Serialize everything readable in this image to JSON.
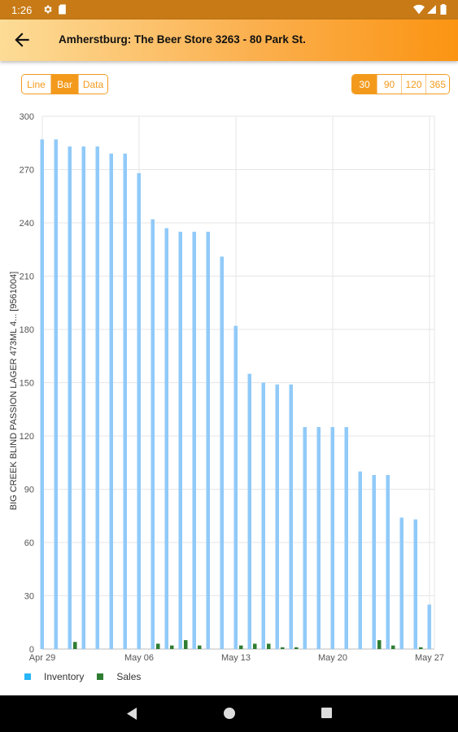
{
  "status_bar": {
    "time": "1:26",
    "icons": [
      "gear-icon",
      "sd-card-icon",
      "wifi-icon",
      "signal-icon",
      "battery-icon"
    ]
  },
  "app_bar": {
    "title": "Amherstburg: The Beer Store 3263 - 80 Park St.",
    "back_icon": "arrow-back-icon"
  },
  "view_toggle": {
    "options": [
      "Line",
      "Bar",
      "Data"
    ],
    "selected": "Bar"
  },
  "range_toggle": {
    "options": [
      "30",
      "90",
      "120",
      "365"
    ],
    "selected": "30"
  },
  "colors": {
    "accent": "#f39a1c",
    "inventory": "#90caf9",
    "sales": "#2e7d32",
    "legend_inventory": "#29b6f6"
  },
  "chart_data": {
    "type": "bar",
    "ylabel": "BIG CREEK BLIND PASSION LAGER 473ML 4... [9561004]",
    "ylim": [
      0,
      300
    ],
    "yticks": [
      0,
      30,
      60,
      90,
      120,
      150,
      180,
      210,
      240,
      270,
      300
    ],
    "x_start": "Apr 29",
    "x": [
      "Apr 29",
      "Apr 30",
      "May 01",
      "May 02",
      "May 03",
      "May 04",
      "May 05",
      "May 06",
      "May 07",
      "May 08",
      "May 09",
      "May 10",
      "May 11",
      "May 12",
      "May 13",
      "May 14",
      "May 15",
      "May 16",
      "May 17",
      "May 18",
      "May 19",
      "May 20",
      "May 21",
      "May 22",
      "May 23",
      "May 24",
      "May 25",
      "May 26",
      "May 27"
    ],
    "xtick_labels": [
      "Apr 29",
      "May 06",
      "May 13",
      "May 20",
      "May 27"
    ],
    "series": [
      {
        "name": "Inventory",
        "values": [
          287,
          287,
          283,
          283,
          283,
          279,
          279,
          268,
          242,
          237,
          235,
          235,
          235,
          221,
          182,
          155,
          150,
          149,
          149,
          125,
          125,
          125,
          125,
          100,
          98,
          98,
          74,
          73,
          25
        ]
      },
      {
        "name": "Sales",
        "values": [
          0,
          0,
          4,
          0,
          0,
          0,
          0,
          0,
          3,
          2,
          5,
          2,
          0,
          0,
          2,
          3,
          3,
          1,
          1,
          0,
          0,
          0,
          0,
          0,
          5,
          2,
          0,
          1,
          0
        ]
      }
    ],
    "grid": true,
    "legend_position": "bottom-left"
  },
  "nav_bar": {
    "buttons": [
      "back-triangle-icon",
      "home-circle-icon",
      "recents-square-icon"
    ]
  }
}
